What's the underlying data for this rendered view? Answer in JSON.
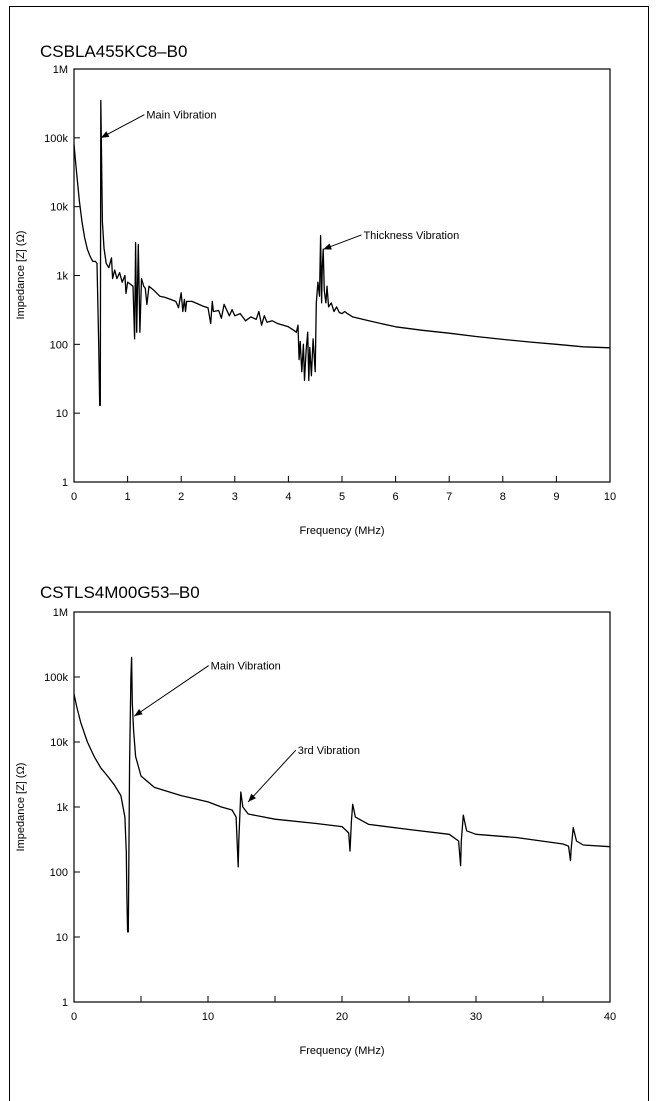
{
  "chart_data": [
    {
      "type": "line",
      "title": "CSBLA455KC8–B0",
      "xlabel": "Frequency (MHz)",
      "ylabel": "Impedance [Z] (Ω)",
      "xlim": [
        0,
        10
      ],
      "ylim": [
        1,
        1000000
      ],
      "y_scale": "log",
      "grid": false,
      "xticks": [
        0,
        1,
        2,
        3,
        4,
        5,
        6,
        7,
        8,
        9,
        10
      ],
      "yticks": [
        {
          "value": 1,
          "label": "1"
        },
        {
          "value": 10,
          "label": "10"
        },
        {
          "value": 100,
          "label": "100"
        },
        {
          "value": 1000,
          "label": "1k"
        },
        {
          "value": 10000,
          "label": "10k"
        },
        {
          "value": 100000,
          "label": "100k"
        },
        {
          "value": 1000000,
          "label": "1M"
        }
      ],
      "annotations": [
        {
          "text": "Main Vibration",
          "at": [
            0.5,
            100000
          ],
          "text_at": [
            1.35,
            190000
          ]
        },
        {
          "text": "Thickness Vibration",
          "at": [
            4.65,
            2400
          ],
          "text_at": [
            5.4,
            3400
          ]
        }
      ],
      "series": [
        {
          "points": [
            [
              0.0,
              80000
            ],
            [
              0.05,
              30000
            ],
            [
              0.1,
              12000
            ],
            [
              0.15,
              6000
            ],
            [
              0.2,
              3500
            ],
            [
              0.25,
              2400
            ],
            [
              0.3,
              1900
            ],
            [
              0.35,
              1600
            ],
            [
              0.4,
              1600
            ],
            [
              0.43,
              1500
            ],
            [
              0.46,
              100
            ],
            [
              0.48,
              13
            ],
            [
              0.49,
              13
            ],
            [
              0.5,
              350000
            ],
            [
              0.51,
              100000
            ],
            [
              0.53,
              6000
            ],
            [
              0.56,
              2500
            ],
            [
              0.6,
              1500
            ],
            [
              0.65,
              1300
            ],
            [
              0.7,
              1800
            ],
            [
              0.72,
              900
            ],
            [
              0.76,
              1200
            ],
            [
              0.8,
              900
            ],
            [
              0.85,
              1100
            ],
            [
              0.9,
              800
            ],
            [
              0.95,
              1000
            ],
            [
              0.97,
              550
            ],
            [
              1.0,
              800
            ],
            [
              1.05,
              750
            ],
            [
              1.1,
              700
            ],
            [
              1.13,
              120
            ],
            [
              1.15,
              3000
            ],
            [
              1.17,
              150
            ],
            [
              1.2,
              2800
            ],
            [
              1.23,
              150
            ],
            [
              1.26,
              900
            ],
            [
              1.3,
              700
            ],
            [
              1.33,
              650
            ],
            [
              1.36,
              380
            ],
            [
              1.4,
              700
            ],
            [
              1.5,
              600
            ],
            [
              1.6,
              500
            ],
            [
              1.7,
              480
            ],
            [
              1.8,
              450
            ],
            [
              1.9,
              420
            ],
            [
              1.95,
              340
            ],
            [
              2.0,
              560
            ],
            [
              2.03,
              300
            ],
            [
              2.06,
              450
            ],
            [
              2.08,
              300
            ],
            [
              2.1,
              420
            ],
            [
              2.2,
              420
            ],
            [
              2.3,
              390
            ],
            [
              2.4,
              360
            ],
            [
              2.5,
              340
            ],
            [
              2.55,
              200
            ],
            [
              2.58,
              420
            ],
            [
              2.6,
              300
            ],
            [
              2.7,
              310
            ],
            [
              2.75,
              240
            ],
            [
              2.8,
              380
            ],
            [
              2.9,
              260
            ],
            [
              2.95,
              320
            ],
            [
              3.0,
              260
            ],
            [
              3.1,
              280
            ],
            [
              3.2,
              220
            ],
            [
              3.3,
              250
            ],
            [
              3.4,
              230
            ],
            [
              3.45,
              300
            ],
            [
              3.5,
              190
            ],
            [
              3.55,
              260
            ],
            [
              3.6,
              210
            ],
            [
              3.7,
              220
            ],
            [
              3.8,
              200
            ],
            [
              3.9,
              190
            ],
            [
              4.0,
              180
            ],
            [
              4.1,
              160
            ],
            [
              4.15,
              150
            ],
            [
              4.18,
              190
            ],
            [
              4.2,
              60
            ],
            [
              4.22,
              110
            ],
            [
              4.25,
              40
            ],
            [
              4.28,
              100
            ],
            [
              4.3,
              30
            ],
            [
              4.33,
              80
            ],
            [
              4.36,
              150
            ],
            [
              4.38,
              30
            ],
            [
              4.4,
              90
            ],
            [
              4.43,
              35
            ],
            [
              4.46,
              120
            ],
            [
              4.5,
              40
            ],
            [
              4.52,
              400
            ],
            [
              4.55,
              800
            ],
            [
              4.58,
              500
            ],
            [
              4.6,
              3800
            ],
            [
              4.62,
              400
            ],
            [
              4.63,
              1200
            ],
            [
              4.65,
              2400
            ],
            [
              4.67,
              600
            ],
            [
              4.7,
              400
            ],
            [
              4.72,
              700
            ],
            [
              4.75,
              350
            ],
            [
              4.8,
              400
            ],
            [
              4.85,
              300
            ],
            [
              4.9,
              350
            ],
            [
              4.95,
              290
            ],
            [
              5.0,
              280
            ],
            [
              5.05,
              300
            ],
            [
              5.1,
              280
            ],
            [
              5.2,
              250
            ],
            [
              5.5,
              220
            ],
            [
              6.0,
              180
            ],
            [
              6.5,
              160
            ],
            [
              7.0,
              145
            ],
            [
              7.5,
              130
            ],
            [
              8.0,
              118
            ],
            [
              8.5,
              108
            ],
            [
              9.0,
              100
            ],
            [
              9.5,
              92
            ],
            [
              10.0,
              89
            ]
          ]
        }
      ]
    },
    {
      "type": "line",
      "title": "CSTLS4M00G53–B0",
      "xlabel": "Frequency (MHz)",
      "ylabel": "Impedance [Z] (Ω)",
      "xlim": [
        0,
        40
      ],
      "ylim": [
        1,
        1000000
      ],
      "y_scale": "log",
      "grid": false,
      "xticks": [
        0,
        10,
        20,
        30,
        40
      ],
      "xticks_minor": [
        5,
        15,
        25,
        35
      ],
      "yticks": [
        {
          "value": 1,
          "label": "1"
        },
        {
          "value": 10,
          "label": "10"
        },
        {
          "value": 100,
          "label": "100"
        },
        {
          "value": 1000,
          "label": "1k"
        },
        {
          "value": 10000,
          "label": "10k"
        },
        {
          "value": 100000,
          "label": "100k"
        },
        {
          "value": 1000000,
          "label": "1M"
        }
      ],
      "annotations": [
        {
          "text": "Main Vibration",
          "at": [
            4.5,
            25000
          ],
          "text_at": [
            10.2,
            130000
          ]
        },
        {
          "text": "3rd Vibration",
          "at": [
            13.0,
            1200
          ],
          "text_at": [
            16.7,
            6500
          ]
        }
      ],
      "series": [
        {
          "points": [
            [
              0.0,
              55000
            ],
            [
              0.2,
              35000
            ],
            [
              0.5,
              20000
            ],
            [
              1.0,
              10000
            ],
            [
              1.5,
              6000
            ],
            [
              2.0,
              4000
            ],
            [
              2.5,
              3000
            ],
            [
              3.0,
              2200
            ],
            [
              3.5,
              1500
            ],
            [
              3.8,
              700
            ],
            [
              3.9,
              200
            ],
            [
              3.95,
              40
            ],
            [
              4.0,
              12
            ],
            [
              4.05,
              12
            ],
            [
              4.15,
              5000
            ],
            [
              4.25,
              100000
            ],
            [
              4.3,
              200000
            ],
            [
              4.35,
              40000
            ],
            [
              4.45,
              15000
            ],
            [
              4.6,
              6000
            ],
            [
              5.0,
              3000
            ],
            [
              6.0,
              2000
            ],
            [
              8.0,
              1500
            ],
            [
              10.0,
              1200
            ],
            [
              11.0,
              1000
            ],
            [
              11.8,
              900
            ],
            [
              12.1,
              700
            ],
            [
              12.25,
              120
            ],
            [
              12.3,
              300
            ],
            [
              12.45,
              1700
            ],
            [
              12.6,
              1000
            ],
            [
              13.0,
              780
            ],
            [
              15.0,
              650
            ],
            [
              18.0,
              560
            ],
            [
              20.0,
              500
            ],
            [
              20.5,
              400
            ],
            [
              20.6,
              210
            ],
            [
              20.7,
              600
            ],
            [
              20.8,
              1100
            ],
            [
              21.0,
              700
            ],
            [
              22.0,
              540
            ],
            [
              25.0,
              450
            ],
            [
              28.0,
              380
            ],
            [
              28.7,
              300
            ],
            [
              28.85,
              125
            ],
            [
              28.9,
              300
            ],
            [
              29.05,
              750
            ],
            [
              29.3,
              430
            ],
            [
              30.0,
              380
            ],
            [
              33.0,
              340
            ],
            [
              36.5,
              270
            ],
            [
              36.9,
              250
            ],
            [
              37.05,
              150
            ],
            [
              37.1,
              220
            ],
            [
              37.25,
              480
            ],
            [
              37.5,
              300
            ],
            [
              38.0,
              260
            ],
            [
              40.0,
              245
            ]
          ]
        }
      ]
    }
  ]
}
